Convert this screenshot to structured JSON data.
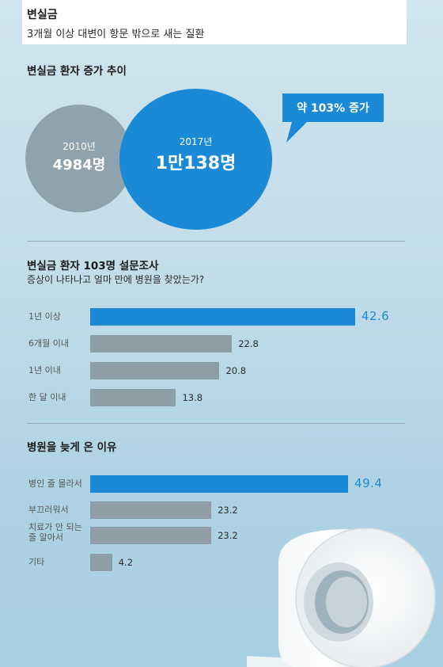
{
  "header": {
    "title": "변실금",
    "subtitle": "3개월 이상 대변이 항문 밖으로 새는 질환"
  },
  "trend": {
    "title": "변실금 환자 증가 추이",
    "before": {
      "year": "2010년",
      "count": "4984명"
    },
    "after": {
      "year": "2017년",
      "count": "1만138명"
    },
    "callout": "약 103% 증가"
  },
  "survey": {
    "title": "변실금 환자 103명 설문조사",
    "question": "증상이 나타나고 얼마 만에 병원을 찾았는가?"
  },
  "reasons": {
    "title": "병원을 늦게 온 이유"
  },
  "colors": {
    "accent": "#1a8ad6",
    "bar_grey": "#8d9ea7",
    "circle_grey": "#8ea3ad"
  },
  "chart_data": [
    {
      "type": "bubble",
      "title": "변실금 환자 증가 추이",
      "categories": [
        "2010년",
        "2017년"
      ],
      "values": [
        4984,
        10138
      ],
      "value_labels": [
        "4984명",
        "1만138명"
      ],
      "annotation": "약 103% 증가"
    },
    {
      "type": "bar",
      "orientation": "horizontal",
      "title": "변실금 환자 103명 설문조사",
      "subtitle": "증상이 나타나고 얼마 만에 병원을 찾았는가?",
      "categories": [
        "1년 이상",
        "6개월 이내",
        "1년 이내",
        "한 달 이내"
      ],
      "values": [
        42.6,
        22.8,
        20.8,
        13.8
      ],
      "value_labels": [
        "42.6",
        "22.8",
        "20.8",
        "13.8"
      ],
      "highlight_index": 0
    },
    {
      "type": "bar",
      "orientation": "horizontal",
      "title": "병원을 늦게 온 이유",
      "categories": [
        "병인 줄 몰라서",
        "부끄러워서",
        "치료가 안 되는\n줄 알아서",
        "기타"
      ],
      "values": [
        49.4,
        23.2,
        23.2,
        4.2
      ],
      "value_labels": [
        "49.4",
        "23.2",
        "23.2",
        "4.2"
      ],
      "highlight_index": 0
    }
  ]
}
